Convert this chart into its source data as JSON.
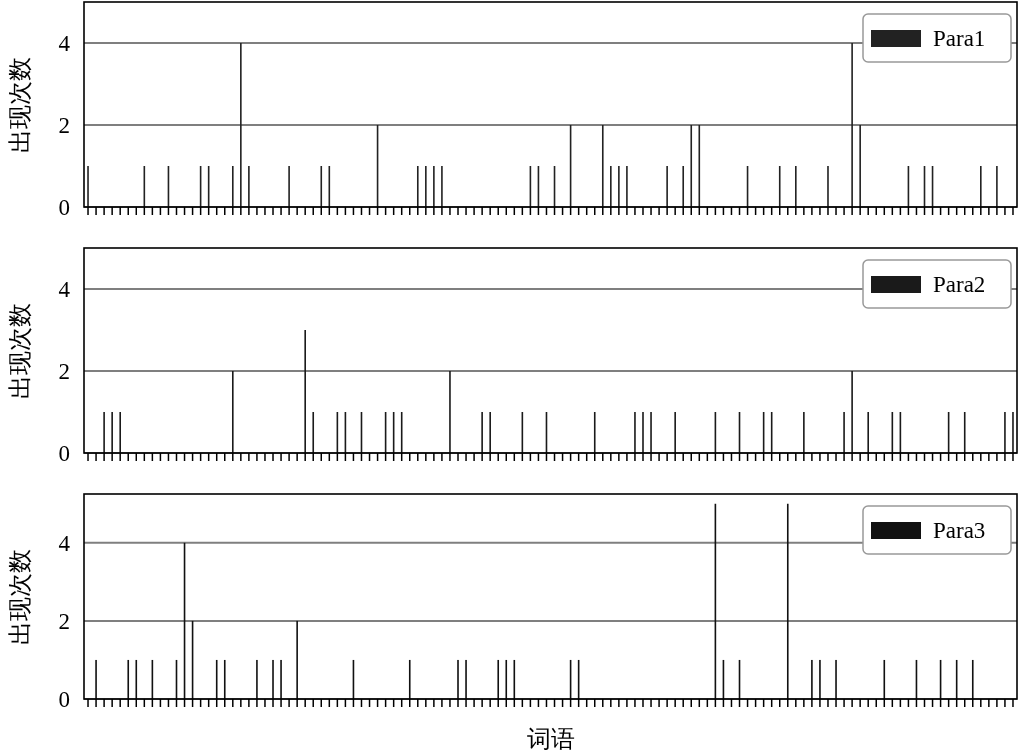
{
  "chart_data": [
    {
      "type": "bar",
      "ylabel": "出现次数",
      "ylim": [
        0,
        5
      ],
      "yticks": [
        0,
        2,
        4
      ],
      "grid": "y",
      "legend": "top right",
      "tick_labels": "y",
      "categories": [
        null,
        null,
        null,
        null,
        null,
        null,
        null,
        null,
        null,
        null,
        null,
        null,
        null,
        null,
        null,
        null,
        null,
        null,
        null,
        null,
        null,
        null,
        null,
        null,
        null,
        null,
        null,
        null,
        null,
        null,
        null,
        null,
        null,
        null,
        null,
        null,
        null,
        null,
        null,
        null,
        null,
        null,
        null,
        null,
        null,
        null,
        null,
        null,
        null,
        null,
        null,
        null,
        null,
        null,
        null,
        null,
        null,
        null,
        null,
        null,
        null,
        null,
        null,
        null,
        null,
        null,
        null,
        null,
        null,
        null,
        null,
        null,
        null,
        null,
        null,
        null,
        null,
        null,
        null,
        null,
        null,
        null,
        null,
        null,
        null,
        null,
        null,
        null,
        null,
        null,
        null,
        null,
        null,
        null,
        null,
        null,
        null,
        null,
        null,
        null,
        null,
        null,
        null,
        null,
        null,
        null,
        null,
        null,
        null,
        null,
        null,
        null,
        null,
        null,
        null,
        null
      ],
      "series": [
        {
          "name": "Para1",
          "color": "#222222",
          "values": [
            1,
            0,
            0,
            0,
            0,
            0,
            0,
            1,
            0,
            0,
            1,
            0,
            0,
            0,
            1,
            1,
            0,
            0,
            1,
            4,
            1,
            0,
            0,
            0,
            0,
            1,
            0,
            0,
            0,
            1,
            1,
            0,
            0,
            0,
            0,
            0,
            2,
            0,
            0,
            0,
            0,
            1,
            1,
            1,
            1,
            0,
            0,
            0,
            0,
            0,
            0,
            0,
            0,
            0,
            0,
            1,
            1,
            0,
            1,
            0,
            2,
            0,
            0,
            0,
            2,
            1,
            1,
            1,
            0,
            0,
            0,
            0,
            1,
            0,
            1,
            2,
            2,
            0,
            0,
            0,
            0,
            0,
            1,
            0,
            0,
            0,
            1,
            0,
            1,
            0,
            0,
            0,
            1,
            0,
            0,
            4,
            2,
            0,
            0,
            0,
            0,
            0,
            1,
            0,
            1,
            1,
            0,
            0,
            0,
            0,
            0,
            1,
            0,
            1,
            0,
            0
          ]
        }
      ]
    },
    {
      "type": "bar",
      "ylabel": "出现次数",
      "ylim": [
        0,
        5
      ],
      "yticks": [
        0,
        2,
        4
      ],
      "grid": "y",
      "legend": "top right",
      "tick_labels": "y",
      "categories": [
        null,
        null,
        null,
        null,
        null,
        null,
        null,
        null,
        null,
        null,
        null,
        null,
        null,
        null,
        null,
        null,
        null,
        null,
        null,
        null,
        null,
        null,
        null,
        null,
        null,
        null,
        null,
        null,
        null,
        null,
        null,
        null,
        null,
        null,
        null,
        null,
        null,
        null,
        null,
        null,
        null,
        null,
        null,
        null,
        null,
        null,
        null,
        null,
        null,
        null,
        null,
        null,
        null,
        null,
        null,
        null,
        null,
        null,
        null,
        null,
        null,
        null,
        null,
        null,
        null,
        null,
        null,
        null,
        null,
        null,
        null,
        null,
        null,
        null,
        null,
        null,
        null,
        null,
        null,
        null,
        null,
        null,
        null,
        null,
        null,
        null,
        null,
        null,
        null,
        null,
        null,
        null,
        null,
        null,
        null,
        null,
        null,
        null,
        null,
        null,
        null,
        null,
        null,
        null,
        null,
        null,
        null,
        null,
        null,
        null,
        null,
        null,
        null,
        null,
        null,
        null
      ],
      "series": [
        {
          "name": "Para2",
          "color": "#1a1a1a",
          "values": [
            0,
            0,
            1,
            1,
            1,
            0,
            0,
            0,
            0,
            0,
            0,
            0,
            0,
            0,
            0,
            0,
            0,
            0,
            2,
            0,
            0,
            0,
            0,
            0,
            0,
            0,
            0,
            3,
            1,
            0,
            0,
            1,
            1,
            0,
            1,
            0,
            0,
            1,
            1,
            1,
            0,
            0,
            0,
            0,
            0,
            2,
            0,
            0,
            0,
            1,
            1,
            0,
            0,
            0,
            1,
            0,
            0,
            1,
            0,
            0,
            0,
            0,
            0,
            1,
            0,
            0,
            0,
            0,
            1,
            1,
            1,
            0,
            0,
            1,
            0,
            0,
            0,
            0,
            1,
            0,
            0,
            1,
            0,
            0,
            1,
            1,
            0,
            0,
            0,
            1,
            0,
            0,
            0,
            0,
            1,
            2,
            0,
            1,
            0,
            0,
            1,
            1,
            0,
            0,
            0,
            0,
            0,
            1,
            0,
            1,
            0,
            0,
            0,
            0,
            1,
            1
          ]
        }
      ]
    },
    {
      "type": "bar",
      "ylabel": "出现次数",
      "xlabel": "词语",
      "ylim": [
        0,
        5.25
      ],
      "yticks": [
        0,
        2,
        4
      ],
      "grid": "y",
      "legend": "top right",
      "tick_labels": "y",
      "categories": [
        null,
        null,
        null,
        null,
        null,
        null,
        null,
        null,
        null,
        null,
        null,
        null,
        null,
        null,
        null,
        null,
        null,
        null,
        null,
        null,
        null,
        null,
        null,
        null,
        null,
        null,
        null,
        null,
        null,
        null,
        null,
        null,
        null,
        null,
        null,
        null,
        null,
        null,
        null,
        null,
        null,
        null,
        null,
        null,
        null,
        null,
        null,
        null,
        null,
        null,
        null,
        null,
        null,
        null,
        null,
        null,
        null,
        null,
        null,
        null,
        null,
        null,
        null,
        null,
        null,
        null,
        null,
        null,
        null,
        null,
        null,
        null,
        null,
        null,
        null,
        null,
        null,
        null,
        null,
        null,
        null,
        null,
        null,
        null,
        null,
        null,
        null,
        null,
        null,
        null,
        null,
        null,
        null,
        null,
        null,
        null,
        null,
        null,
        null,
        null,
        null,
        null,
        null,
        null,
        null,
        null,
        null,
        null,
        null,
        null,
        null,
        null,
        null,
        null,
        null,
        null
      ],
      "series": [
        {
          "name": "Para3",
          "color": "#111111",
          "values": [
            0,
            1,
            0,
            0,
            0,
            1,
            1,
            0,
            1,
            0,
            0,
            1,
            4,
            2,
            0,
            0,
            1,
            1,
            0,
            0,
            0,
            1,
            0,
            1,
            1,
            0,
            2,
            0,
            0,
            0,
            0,
            0,
            0,
            1,
            0,
            0,
            0,
            0,
            0,
            0,
            1,
            0,
            0,
            0,
            0,
            0,
            1,
            1,
            0,
            0,
            0,
            1,
            1,
            1,
            0,
            0,
            0,
            0,
            0,
            0,
            1,
            1,
            0,
            0,
            0,
            0,
            0,
            0,
            0,
            0,
            0,
            0,
            0,
            0,
            0,
            0,
            0,
            0,
            5,
            1,
            0,
            1,
            0,
            0,
            0,
            0,
            0,
            5,
            0,
            0,
            1,
            1,
            0,
            1,
            0,
            0,
            0,
            0,
            0,
            1,
            0,
            0,
            0,
            1,
            0,
            0,
            1,
            0,
            1,
            0,
            1,
            0,
            0,
            0,
            0,
            0
          ]
        }
      ]
    }
  ]
}
